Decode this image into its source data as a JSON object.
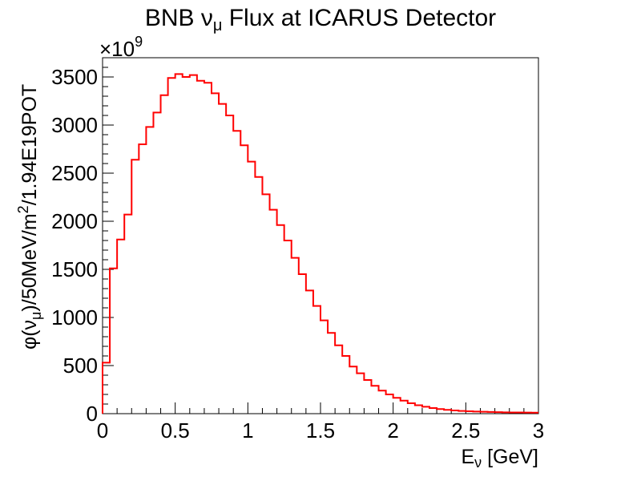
{
  "chart_data": {
    "type": "histogram",
    "title": {
      "main": "BNB ",
      "symbol": "ν",
      "sub": "μ",
      "rest": " Flux at ICARUS Detector"
    },
    "xlabel": {
      "main": "E",
      "sub": "ν",
      "rest": " [GeV]"
    },
    "ylabel": {
      "a": "φ(ν",
      "sub": "μ",
      "b": ")/50MeV/m",
      "sup": "2",
      "c": "/1.94E19POT"
    },
    "multiplier": {
      "base": "×10",
      "exp": "9"
    },
    "xlim": [
      0,
      3
    ],
    "ylim": [
      0,
      3700
    ],
    "bin_width": 0.05,
    "x_tick_labels": [
      "0",
      "0.5",
      "1",
      "1.5",
      "2",
      "2.5",
      "3"
    ],
    "y_tick_labels": [
      "0",
      "500",
      "1000",
      "1500",
      "2000",
      "2500",
      "3000",
      "3500"
    ],
    "values": [
      530,
      1510,
      1810,
      2070,
      2640,
      2800,
      2980,
      3130,
      3310,
      3490,
      3530,
      3500,
      3520,
      3460,
      3440,
      3330,
      3220,
      3100,
      2940,
      2790,
      2620,
      2460,
      2280,
      2120,
      1960,
      1800,
      1620,
      1450,
      1280,
      1120,
      970,
      840,
      710,
      600,
      490,
      420,
      350,
      290,
      240,
      200,
      165,
      135,
      108,
      88,
      72,
      58,
      48,
      40,
      33,
      28,
      25,
      22,
      20,
      18,
      16,
      14,
      13,
      12,
      11,
      10
    ],
    "line_color": "#ff0000",
    "grid": false,
    "legend": false
  }
}
